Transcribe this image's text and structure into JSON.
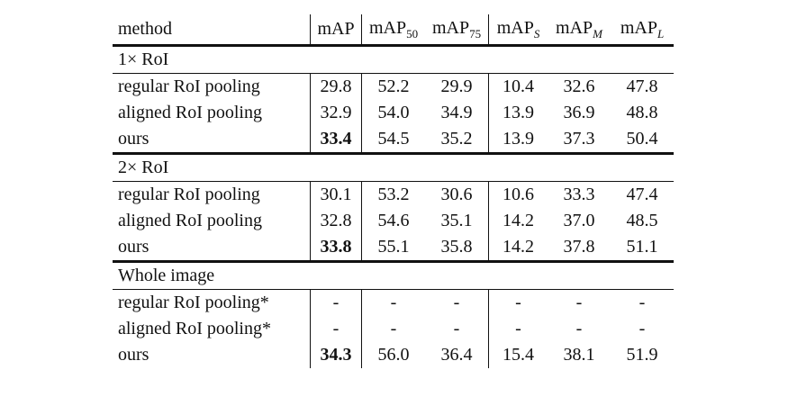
{
  "table": {
    "header": [
      {
        "main": "method"
      },
      {
        "main": "mAP"
      },
      {
        "main": "mAP",
        "sub": "50"
      },
      {
        "main": "mAP",
        "sub": "75"
      },
      {
        "main": "mAP",
        "sub": "S"
      },
      {
        "main": "mAP",
        "sub": "M"
      },
      {
        "main": "mAP",
        "sub": "L"
      }
    ],
    "sections": [
      {
        "title": "1× RoI",
        "rows": [
          {
            "method": "regular RoI pooling",
            "values": [
              "29.8",
              "52.2",
              "29.9",
              "10.4",
              "32.6",
              "47.8"
            ]
          },
          {
            "method": "aligned RoI pooling",
            "values": [
              "32.9",
              "54.0",
              "34.9",
              "13.9",
              "36.9",
              "48.8"
            ]
          },
          {
            "method": "ours",
            "values": [
              "33.4",
              "54.5",
              "35.2",
              "13.9",
              "37.3",
              "50.4"
            ],
            "bold": [
              0
            ]
          }
        ]
      },
      {
        "title": "2× RoI",
        "rows": [
          {
            "method": "regular RoI pooling",
            "values": [
              "30.1",
              "53.2",
              "30.6",
              "10.6",
              "33.3",
              "47.4"
            ]
          },
          {
            "method": "aligned RoI pooling",
            "values": [
              "32.8",
              "54.6",
              "35.1",
              "14.2",
              "37.0",
              "48.5"
            ]
          },
          {
            "method": "ours",
            "values": [
              "33.8",
              "55.1",
              "35.8",
              "14.2",
              "37.8",
              "51.1"
            ],
            "bold": [
              0
            ]
          }
        ]
      },
      {
        "title": "Whole image",
        "rows": [
          {
            "method": "regular RoI pooling*",
            "values": [
              "-",
              "-",
              "-",
              "-",
              "-",
              "-"
            ]
          },
          {
            "method": "aligned RoI pooling*",
            "values": [
              "-",
              "-",
              "-",
              "-",
              "-",
              "-"
            ]
          },
          {
            "method": "ours",
            "values": [
              "34.3",
              "56.0",
              "36.4",
              "15.4",
              "38.1",
              "51.9"
            ],
            "bold": [
              0
            ]
          }
        ]
      }
    ]
  }
}
